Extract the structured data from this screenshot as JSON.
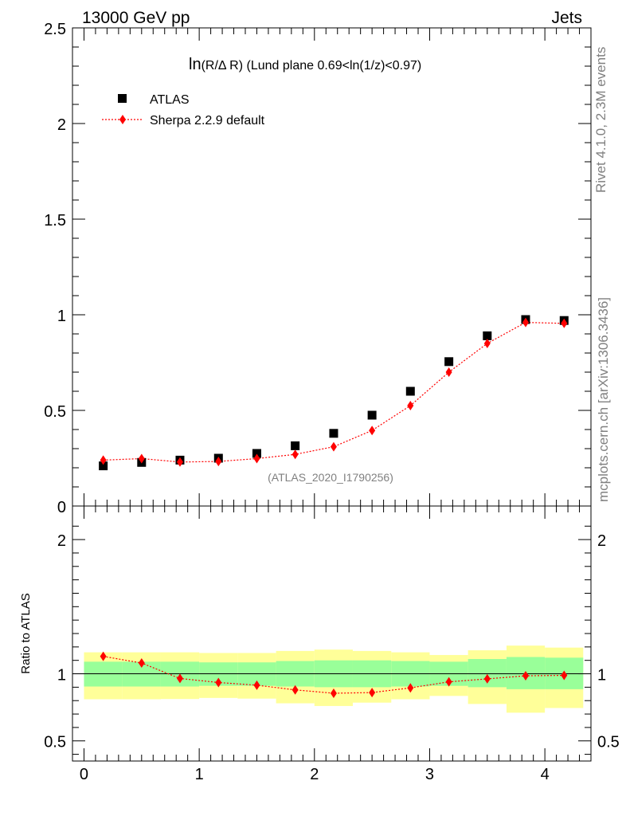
{
  "header": {
    "left": "13000 GeV pp",
    "right": "Jets"
  },
  "side_labels": {
    "rivet": "Rivet 4.1.0,  2.3M events",
    "mcplots": "mcplots.cern.ch [arXiv:1306.3436]"
  },
  "chart_data": [
    {
      "type": "scatter",
      "panel": "main",
      "title_main": "ln",
      "title_paren": "(R/Δ R)",
      "title_rest": " (Lund plane 0.69<ln(1/z)<0.97)",
      "watermark": "(ATLAS_2020_I1790256)",
      "xlim": [
        -0.1,
        4.4
      ],
      "ylim": [
        0,
        2.5
      ],
      "yticks": [
        0,
        0.5,
        1,
        1.5,
        2,
        2.5
      ],
      "ytick_labels": [
        "0",
        "0.5",
        "1",
        "1.5",
        "2",
        "2.5"
      ],
      "x": [
        0.167,
        0.5,
        0.833,
        1.167,
        1.5,
        1.833,
        2.167,
        2.5,
        2.833,
        3.167,
        3.5,
        3.833,
        4.167
      ],
      "series": [
        {
          "name": "ATLAS",
          "color": "#000000",
          "marker": "square",
          "values": [
            0.21,
            0.228,
            0.24,
            0.25,
            0.275,
            0.315,
            0.38,
            0.475,
            0.6,
            0.755,
            0.89,
            0.975,
            0.97
          ]
        },
        {
          "name": "Sherpa 2.2.9 default",
          "color": "#ff0000",
          "marker": "diamond",
          "line": "dotted",
          "values": [
            0.24,
            0.248,
            0.23,
            0.233,
            0.248,
            0.27,
            0.31,
            0.395,
            0.525,
            0.7,
            0.85,
            0.96,
            0.955
          ]
        }
      ],
      "legend": [
        "ATLAS",
        "Sherpa 2.2.9 default"
      ]
    },
    {
      "type": "scatter",
      "panel": "ratio",
      "ylabel": "Ratio to ATLAS",
      "xlim": [
        -0.1,
        4.4
      ],
      "ylim": [
        0.35,
        2.25
      ],
      "yticks": [
        0.5,
        1,
        2
      ],
      "ytick_labels": [
        "0.5",
        "1",
        "2"
      ],
      "xticks": [
        0,
        1,
        2,
        3,
        4
      ],
      "xtick_labels": [
        "0",
        "1",
        "2",
        "3",
        "4"
      ],
      "bins": [
        [
          0,
          0.333
        ],
        [
          0.333,
          0.667
        ],
        [
          0.667,
          1.0
        ],
        [
          1.0,
          1.333
        ],
        [
          1.333,
          1.667
        ],
        [
          1.667,
          2.0
        ],
        [
          2.0,
          2.333
        ],
        [
          2.333,
          2.667
        ],
        [
          2.667,
          3.0
        ],
        [
          3.0,
          3.333
        ],
        [
          3.333,
          3.667
        ],
        [
          3.667,
          4.0
        ],
        [
          4.0,
          4.333
        ]
      ],
      "band_inner_color": "#99ff99",
      "band_outer_color": "#ffff99",
      "band_inner": [
        [
          0.905,
          1.09
        ],
        [
          0.905,
          1.09
        ],
        [
          0.905,
          1.09
        ],
        [
          0.91,
          1.085
        ],
        [
          0.91,
          1.085
        ],
        [
          0.905,
          1.095
        ],
        [
          0.9,
          1.1
        ],
        [
          0.9,
          1.1
        ],
        [
          0.905,
          1.095
        ],
        [
          0.91,
          1.09
        ],
        [
          0.9,
          1.11
        ],
        [
          0.885,
          1.125
        ],
        [
          0.885,
          1.12
        ]
      ],
      "band_outer": [
        [
          0.81,
          1.16
        ],
        [
          0.81,
          1.16
        ],
        [
          0.812,
          1.16
        ],
        [
          0.82,
          1.155
        ],
        [
          0.815,
          1.155
        ],
        [
          0.78,
          1.17
        ],
        [
          0.76,
          1.18
        ],
        [
          0.785,
          1.17
        ],
        [
          0.81,
          1.16
        ],
        [
          0.835,
          1.14
        ],
        [
          0.775,
          1.175
        ],
        [
          0.71,
          1.21
        ],
        [
          0.745,
          1.195
        ]
      ],
      "series": [
        {
          "name": "Sherpa 2.2.9 default",
          "color": "#ff0000",
          "marker": "diamond",
          "line": "dotted",
          "values": [
            1.13,
            1.08,
            0.965,
            0.935,
            0.915,
            0.88,
            0.855,
            0.86,
            0.895,
            0.94,
            0.962,
            0.985,
            0.988
          ]
        }
      ]
    }
  ]
}
